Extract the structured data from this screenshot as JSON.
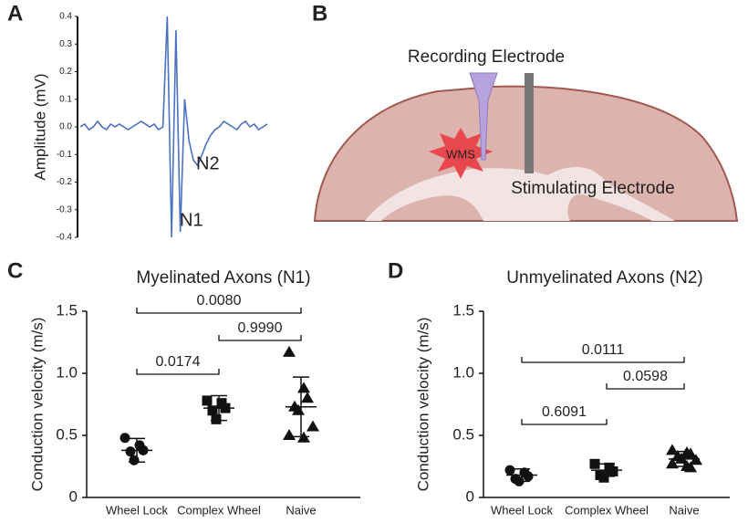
{
  "chart_data": [
    {
      "type": "line",
      "panel": "A",
      "ylabel": "Amplitude (mV)",
      "color": "#4a72c0",
      "ylim": [
        -0.4,
        0.4
      ],
      "yticks": [
        {
          "value": 0.4,
          "label": "0.4"
        },
        {
          "value": 0.3,
          "label": "0.3"
        },
        {
          "value": 0.2,
          "label": "0.2"
        },
        {
          "value": 0.1,
          "label": "0.1"
        },
        {
          "value": 0,
          "label": "0.0"
        },
        {
          "value": -0.1,
          "label": "-0.1"
        },
        {
          "value": -0.2,
          "label": "-0.2"
        },
        {
          "value": -0.3,
          "label": "-0.3"
        },
        {
          "value": -0.4,
          "label": "-0.4"
        }
      ],
      "annotations": [
        "N2",
        "N1"
      ],
      "values": [
        0,
        0.01,
        -0.01,
        0,
        0.02,
        0,
        -0.01,
        0.01,
        0,
        0.01,
        0,
        -0.01,
        0,
        0.01,
        0.02,
        0.01,
        0,
        0.01,
        -0.01,
        0,
        0.4,
        -0.4,
        0.35,
        -0.38,
        0.1,
        -0.05,
        -0.12,
        -0.14,
        -0.1,
        -0.06,
        -0.03,
        -0.01,
        0,
        0.02,
        0.01,
        0,
        -0.01,
        0.01,
        0.02,
        0,
        0.01,
        -0.01,
        0,
        0.01
      ]
    },
    {
      "type": "diagram",
      "panel": "B",
      "labels": [
        "Recording Electrode",
        "Stimulating Electrode",
        "WMS"
      ]
    },
    {
      "type": "dot",
      "panel": "C",
      "title": "Myelinated Axons (N1)",
      "ylabel": "Conduction velocity (m/s)",
      "categories": [
        "Wheel Lock",
        "Complex Wheel",
        "Naive"
      ],
      "markers": [
        "circle",
        "square",
        "triangle"
      ],
      "color": "#111111",
      "ylim": [
        0,
        1.5
      ],
      "yticks": [
        0,
        0.5,
        {
          "value": 1,
          "label": "1.0"
        },
        1.5
      ],
      "points": [
        [
          0.48,
          0.42,
          0.38,
          0.37,
          0.3
        ],
        [
          0.78,
          0.76,
          0.72,
          0.7,
          0.63
        ],
        [
          1.17,
          0.88,
          0.8,
          0.73,
          0.7,
          0.57,
          0.5,
          0.48
        ]
      ],
      "means": [
        0.38,
        0.72,
        0.73
      ],
      "sd": [
        0.095,
        0.1,
        0.24
      ],
      "comparisons": [
        {
          "groups": [
            0,
            2
          ],
          "label": "0.0080"
        },
        {
          "groups": [
            1,
            2
          ],
          "label": "0.9990"
        },
        {
          "groups": [
            0,
            1
          ],
          "label": "0.0174"
        }
      ]
    },
    {
      "type": "dot",
      "panel": "D",
      "title": "Unmyelinated Axons (N2)",
      "ylabel": "Conduction velocity (m/s)",
      "categories": [
        "Wheel Lock",
        "Complex Wheel",
        "Naive"
      ],
      "markers": [
        "circle",
        "square",
        "triangle"
      ],
      "color": "#111111",
      "ylim": [
        0,
        1.5
      ],
      "yticks": [
        0,
        0.5,
        {
          "value": 1,
          "label": "1.0"
        },
        1.5
      ],
      "points": [
        [
          0.22,
          0.2,
          0.17,
          0.15,
          0.13
        ],
        [
          0.27,
          0.24,
          0.21,
          0.18,
          0.16
        ],
        [
          0.38,
          0.36,
          0.35,
          0.33,
          0.31,
          0.3,
          0.27,
          0.25,
          0.24
        ]
      ],
      "means": [
        0.18,
        0.22,
        0.31
      ],
      "sd": [
        0.05,
        0.05,
        0.06
      ],
      "comparisons": [
        {
          "groups": [
            0,
            2
          ],
          "label": "0.0111"
        },
        {
          "groups": [
            1,
            2
          ],
          "label": "0.0598"
        },
        {
          "groups": [
            0,
            1
          ],
          "label": "0.6091"
        }
      ]
    }
  ]
}
